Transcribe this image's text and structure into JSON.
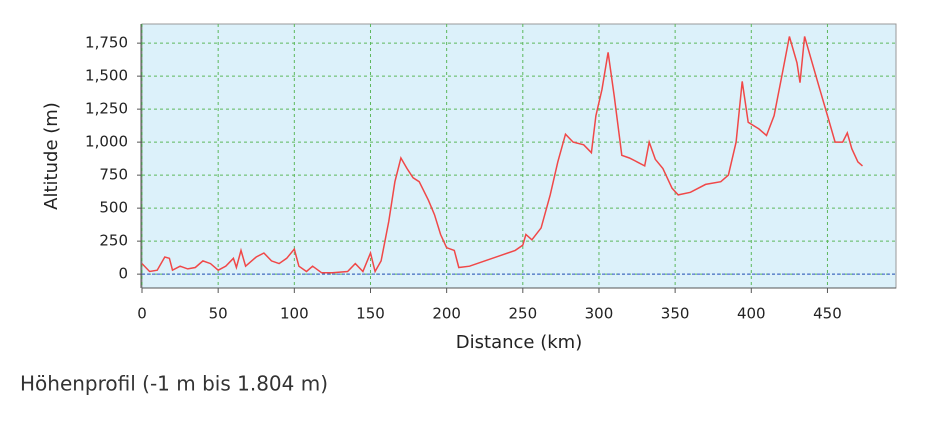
{
  "chart_data": {
    "type": "line",
    "caption": "Höhenprofil (-1 m bis 1.804 m)",
    "x_label": "Distance (km)",
    "y_label": "Altitude (m)",
    "x": [
      0,
      5,
      10,
      15,
      18,
      20,
      25,
      30,
      35,
      40,
      45,
      50,
      55,
      60,
      62,
      65,
      68,
      75,
      80,
      85,
      90,
      95,
      100,
      103,
      108,
      112,
      118,
      125,
      135,
      140,
      145,
      150,
      153,
      157,
      162,
      166,
      170,
      174,
      178,
      182,
      188,
      192,
      196,
      200,
      205,
      208,
      215,
      225,
      235,
      245,
      250,
      252,
      256,
      262,
      268,
      273,
      278,
      283,
      290,
      295,
      298,
      302,
      306,
      310,
      315,
      320,
      325,
      330,
      333,
      337,
      342,
      348,
      352,
      360,
      370,
      380,
      385,
      390,
      394,
      398,
      405,
      410,
      415,
      420,
      425,
      430,
      432,
      435,
      440,
      445,
      450,
      455,
      460,
      463,
      466,
      470,
      473
    ],
    "series": [
      {
        "name": "Altitude",
        "color": "#f04848",
        "values": [
          80,
          20,
          30,
          130,
          120,
          30,
          60,
          40,
          50,
          100,
          80,
          30,
          60,
          120,
          50,
          180,
          60,
          130,
          160,
          100,
          80,
          120,
          190,
          60,
          20,
          60,
          10,
          10,
          20,
          80,
          20,
          160,
          20,
          100,
          400,
          700,
          880,
          800,
          730,
          700,
          560,
          450,
          300,
          200,
          180,
          50,
          60,
          100,
          140,
          180,
          220,
          300,
          260,
          350,
          600,
          850,
          1060,
          1000,
          980,
          920,
          1200,
          1400,
          1680,
          1350,
          900,
          880,
          850,
          820,
          1000,
          870,
          800,
          650,
          600,
          620,
          680,
          700,
          750,
          1000,
          1460,
          1150,
          1100,
          1050,
          1200,
          1500,
          1800,
          1600,
          1450,
          1800,
          1600,
          1400,
          1200,
          1000,
          1000,
          1070,
          950,
          850,
          820
        ]
      }
    ],
    "xlim": [
      0,
      495
    ],
    "ylim": [
      -105,
      1895
    ],
    "xticks": [
      0,
      50,
      100,
      150,
      200,
      250,
      300,
      350,
      400,
      450
    ],
    "yticks": [
      0,
      250,
      500,
      750,
      {
        "value": 1000,
        "label": "1,000"
      },
      {
        "value": 1250,
        "label": "1,250"
      },
      {
        "value": 1500,
        "label": "1,500"
      },
      {
        "value": 1750,
        "label": "1,750"
      }
    ],
    "grid": true,
    "background": "#dcf1fa",
    "grid_color": "#5cb85c"
  }
}
